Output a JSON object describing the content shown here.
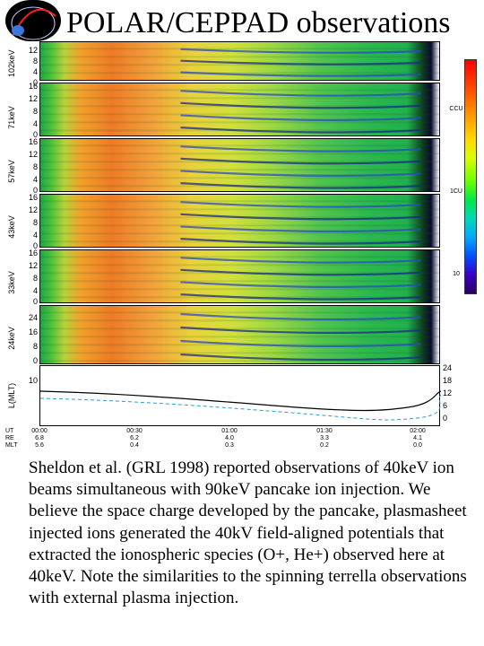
{
  "header": {
    "title": "POLAR/CEPPAD observations"
  },
  "figure": {
    "panels": [
      {
        "label": "102keV",
        "ticks": [
          "12",
          "8",
          "4",
          "0"
        ]
      },
      {
        "label": "71keV",
        "ticks": [
          "16",
          "12",
          "8",
          "4",
          "0"
        ]
      },
      {
        "label": "57keV",
        "ticks": [
          "16",
          "12",
          "8",
          "4",
          "0"
        ]
      },
      {
        "label": "43keV",
        "ticks": [
          "16",
          "12",
          "8",
          "4",
          "0"
        ]
      },
      {
        "label": "33keV",
        "ticks": [
          "16",
          "12",
          "8",
          "4",
          "0"
        ]
      },
      {
        "label": "24keV",
        "ticks": [
          "24",
          "16",
          "8",
          "0"
        ]
      }
    ],
    "line_panel": {
      "label": "L(MLT)",
      "left_ticks": [
        "10"
      ],
      "right_ticks": [
        "24",
        "18",
        "12",
        "6",
        "0"
      ]
    },
    "colorbar": {
      "ticks": [
        "CCU",
        "1CU",
        "10"
      ]
    },
    "x_axis": {
      "row_labels": [
        "UT",
        "RE",
        "MLT"
      ],
      "ticks": [
        {
          "time": "00:00",
          "re": "6.8",
          "mlt": "5.6"
        },
        {
          "time": "00:30",
          "re": "6.2",
          "mlt": "0.4"
        },
        {
          "time": "01:00",
          "re": "4.0",
          "mlt": "0.3"
        },
        {
          "time": "01:30",
          "re": "3.3",
          "mlt": "0.2"
        },
        {
          "time": "02:00",
          "re": "4.1",
          "mlt": "0.0"
        }
      ]
    }
  },
  "caption": {
    "text": "Sheldon et al. (GRL 1998) reported observations of 40keV ion beams simultaneous with 90keV pancake ion injection. We believe the space charge developed by the pancake, plasmasheet injected ions generated the 40kV field-aligned potentials that extracted the ionospheric species (O+, He+) observed here at 40keV. Note the similarities to the spinning terrella observations with external plasma injection."
  }
}
